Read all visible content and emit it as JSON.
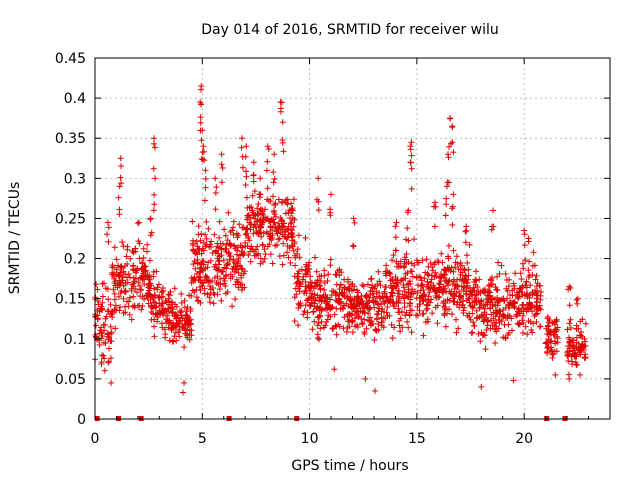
{
  "colors": {
    "series": "#e00000",
    "axis": "#000000",
    "grid": "#a0a0a0",
    "background": "#ffffff"
  },
  "chart_data": {
    "type": "scatter",
    "title": "Day 014 of 2016, SRMTID for receiver wilu",
    "xlabel": "GPS time / hours",
    "ylabel": "SRMTID / TECUs",
    "xlim": [
      0,
      24
    ],
    "ylim": [
      0,
      0.45
    ],
    "grid": true,
    "legend": "none",
    "marker": "plus",
    "x_ticks": [
      0,
      5,
      10,
      15,
      20
    ],
    "x_tick_labels": [
      "0",
      "5",
      "10",
      "15",
      "20"
    ],
    "y_ticks": [
      0,
      0.05,
      0.1,
      0.15,
      0.2,
      0.25,
      0.3,
      0.35,
      0.4,
      0.45
    ],
    "y_tick_labels": [
      "0",
      "0.05",
      "0.1",
      "0.15",
      "0.2",
      "0.25",
      "0.3",
      "0.35",
      "0.4",
      "0.45"
    ],
    "zero_value_hours": [
      0.1,
      1.1,
      2.15,
      6.25,
      9.4,
      21.05,
      21.9
    ],
    "series": [
      {
        "name": "SRMTID",
        "segments": [
          {
            "start": 0.0,
            "end": 0.8,
            "level": 0.12,
            "spread": 0.055,
            "base_min": 0.04
          },
          {
            "start": 0.8,
            "end": 1.8,
            "level": 0.17,
            "spread": 0.045,
            "base_min": 0.06
          },
          {
            "start": 1.8,
            "end": 2.6,
            "level": 0.17,
            "spread": 0.04,
            "base_min": 0.09
          },
          {
            "start": 2.6,
            "end": 3.2,
            "level": 0.14,
            "spread": 0.035,
            "base_min": 0.08
          },
          {
            "start": 3.2,
            "end": 4.5,
            "level": 0.125,
            "spread": 0.03,
            "base_min": 0.03
          },
          {
            "start": 4.5,
            "end": 5.8,
            "level": 0.19,
            "spread": 0.045,
            "base_min": 0.1
          },
          {
            "start": 5.8,
            "end": 7.0,
            "level": 0.2,
            "spread": 0.05,
            "base_min": 0.1
          },
          {
            "start": 7.0,
            "end": 9.3,
            "level": 0.24,
            "spread": 0.045,
            "base_min": 0.13
          },
          {
            "start": 9.3,
            "end": 10.0,
            "level": 0.17,
            "spread": 0.04,
            "base_min": 0.09
          },
          {
            "start": 10.0,
            "end": 11.5,
            "level": 0.15,
            "spread": 0.04,
            "base_min": 0.06
          },
          {
            "start": 11.5,
            "end": 13.5,
            "level": 0.14,
            "spread": 0.035,
            "base_min": 0.05
          },
          {
            "start": 13.5,
            "end": 15.5,
            "level": 0.16,
            "spread": 0.045,
            "base_min": 0.07
          },
          {
            "start": 15.5,
            "end": 17.5,
            "level": 0.165,
            "spread": 0.045,
            "base_min": 0.07
          },
          {
            "start": 17.5,
            "end": 19.5,
            "level": 0.14,
            "spread": 0.04,
            "base_min": 0.05
          },
          {
            "start": 19.5,
            "end": 20.8,
            "level": 0.15,
            "spread": 0.04,
            "base_min": 0.05
          },
          {
            "start": 21.0,
            "end": 21.6,
            "level": 0.105,
            "spread": 0.03,
            "base_min": 0.06
          },
          {
            "start": 22.0,
            "end": 22.9,
            "level": 0.09,
            "spread": 0.03,
            "base_min": 0.05
          }
        ],
        "peaks": [
          {
            "x": 0.6,
            "y": 0.245
          },
          {
            "x": 1.2,
            "y": 0.325
          },
          {
            "x": 1.15,
            "y": 0.29
          },
          {
            "x": 2.05,
            "y": 0.245
          },
          {
            "x": 2.6,
            "y": 0.25
          },
          {
            "x": 2.75,
            "y": 0.35
          },
          {
            "x": 2.8,
            "y": 0.3
          },
          {
            "x": 4.95,
            "y": 0.415
          },
          {
            "x": 4.9,
            "y": 0.395
          },
          {
            "x": 5.0,
            "y": 0.36
          },
          {
            "x": 5.05,
            "y": 0.34
          },
          {
            "x": 5.15,
            "y": 0.31
          },
          {
            "x": 5.6,
            "y": 0.3
          },
          {
            "x": 5.9,
            "y": 0.33
          },
          {
            "x": 6.85,
            "y": 0.35
          },
          {
            "x": 7.05,
            "y": 0.34
          },
          {
            "x": 7.4,
            "y": 0.32
          },
          {
            "x": 7.7,
            "y": 0.3
          },
          {
            "x": 8.05,
            "y": 0.34
          },
          {
            "x": 8.35,
            "y": 0.33
          },
          {
            "x": 8.65,
            "y": 0.395
          },
          {
            "x": 8.75,
            "y": 0.37
          },
          {
            "x": 10.4,
            "y": 0.3
          },
          {
            "x": 11.0,
            "y": 0.28
          },
          {
            "x": 12.05,
            "y": 0.25
          },
          {
            "x": 14.05,
            "y": 0.245
          },
          {
            "x": 14.6,
            "y": 0.26
          },
          {
            "x": 14.7,
            "y": 0.32
          },
          {
            "x": 14.75,
            "y": 0.345
          },
          {
            "x": 15.85,
            "y": 0.27
          },
          {
            "x": 16.4,
            "y": 0.29
          },
          {
            "x": 16.45,
            "y": 0.33
          },
          {
            "x": 16.55,
            "y": 0.375
          },
          {
            "x": 16.65,
            "y": 0.365
          },
          {
            "x": 16.7,
            "y": 0.28
          },
          {
            "x": 17.3,
            "y": 0.24
          },
          {
            "x": 18.55,
            "y": 0.26
          },
          {
            "x": 20.0,
            "y": 0.235
          },
          {
            "x": 20.2,
            "y": 0.225
          },
          {
            "x": 22.1,
            "y": 0.165
          },
          {
            "x": 22.5,
            "y": 0.15
          }
        ],
        "lows": [
          {
            "x": 0.75,
            "y": 0.045
          },
          {
            "x": 4.1,
            "y": 0.033
          },
          {
            "x": 4.15,
            "y": 0.045
          },
          {
            "x": 11.15,
            "y": 0.062
          },
          {
            "x": 12.6,
            "y": 0.05
          },
          {
            "x": 13.05,
            "y": 0.035
          },
          {
            "x": 18.0,
            "y": 0.04
          },
          {
            "x": 19.5,
            "y": 0.048
          },
          {
            "x": 21.45,
            "y": 0.055
          },
          {
            "x": 22.1,
            "y": 0.05
          },
          {
            "x": 22.6,
            "y": 0.055
          }
        ]
      }
    ]
  }
}
